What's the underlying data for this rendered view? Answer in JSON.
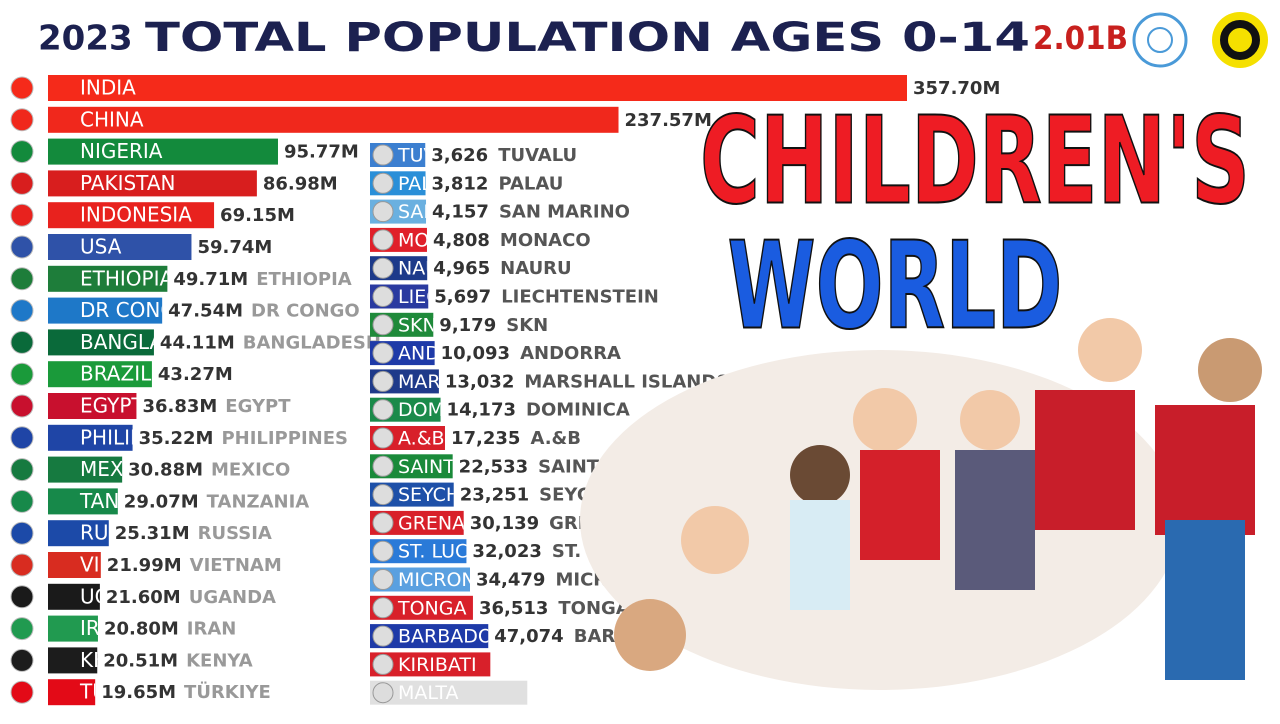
{
  "chart_data": [
    {
      "type": "bar",
      "orientation": "horizontal",
      "year": "2023",
      "title": "TOTAL POPULATION AGES 0-14",
      "total": "2.01B",
      "annotations": [
        "CHILDREN'S",
        "WORLD"
      ],
      "categories": [
        "INDIA",
        "CHINA",
        "NIGERIA",
        "PAKISTAN",
        "INDONESIA",
        "USA",
        "ETHIOPIA",
        "DR CONGO",
        "BANGLADESH",
        "BRAZIL",
        "EGYPT",
        "PHILIPPINES",
        "MEXICO",
        "TANZANIA",
        "RUSSIA",
        "VIETNAM",
        "UGANDA",
        "IRAN",
        "KENYA",
        "TÜRKIYE"
      ],
      "values": [
        357.7,
        237.57,
        95.77,
        86.98,
        69.15,
        59.74,
        49.71,
        47.54,
        44.11,
        43.27,
        36.83,
        35.22,
        30.88,
        29.07,
        25.31,
        21.99,
        21.6,
        20.8,
        20.51,
        19.65
      ],
      "value_labels": [
        "357.70M",
        "237.57M",
        "95.77M",
        "86.98M",
        "69.15M",
        "59.74M",
        "49.71M",
        "47.54M",
        "44.11M",
        "43.27M",
        "36.83M",
        "35.22M",
        "30.88M",
        "29.07M",
        "25.31M",
        "21.99M",
        "21.60M",
        "20.80M",
        "20.51M",
        "19.65M"
      ],
      "colors": [
        "#f52a1a",
        "#f0281c",
        "#138a3c",
        "#d81e1e",
        "#e8221e",
        "#2f52a8",
        "#1e7d3a",
        "#1e78c8",
        "#0a6a3a",
        "#1a9a3a",
        "#c8102e",
        "#1f45a6",
        "#167a40",
        "#17894a",
        "#1c4aa8",
        "#d82c20",
        "#1a1a1a",
        "#219a50",
        "#1c1c1c",
        "#e30a17"
      ]
    },
    {
      "type": "bar",
      "orientation": "horizontal",
      "categories": [
        "TUVALU",
        "PALAU",
        "SAN MARINO",
        "MONACO",
        "NAURU",
        "LIECHTENSTEIN",
        "SKN",
        "ANDORRA",
        "MARSHALL ISLANDS",
        "DOMINICA",
        "A.&B",
        "SAINT VINCENT",
        "SEYCHELLES",
        "GRENADA",
        "ST. LUCIA",
        "MICRONESIA",
        "TONGA",
        "BARBADOS",
        "KIRIBATI",
        "MALTA"
      ],
      "values": [
        3626,
        3812,
        4157,
        4808,
        4965,
        5697,
        9179,
        10093,
        13032,
        14173,
        17235,
        22533,
        23251,
        30139,
        32023,
        34479,
        36513,
        47074,
        48500,
        74000
      ],
      "value_labels": [
        "3,626",
        "3,812",
        "4,157",
        "4,808",
        "4,965",
        "5,697",
        "9,179",
        "10,093",
        "13,032",
        "14,173",
        "17,235",
        "22,533",
        "23,251",
        "30,139",
        "32,023",
        "34,479",
        "36,513",
        "47,074",
        null,
        null
      ],
      "colors": [
        "#3c7fd0",
        "#2a8fd8",
        "#6ab0e0",
        "#e0202a",
        "#1d3a8a",
        "#2a3aa0",
        "#1f8a3a",
        "#1e3aa8",
        "#1e3a8a",
        "#1a8a4a",
        "#d8202a",
        "#1a8a3a",
        "#1e50a8",
        "#d8202a",
        "#2a7ad8",
        "#5aa0e0",
        "#d8202a",
        "#1e3aa8",
        "#d8202a",
        "#e0e0e0"
      ]
    }
  ]
}
